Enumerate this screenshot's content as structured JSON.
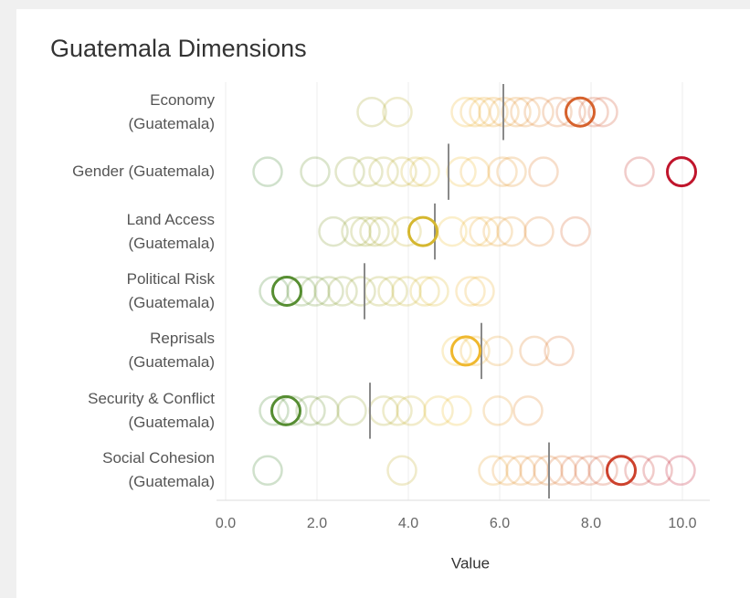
{
  "chart_data": {
    "type": "strip",
    "title": "Guatemala Dimensions",
    "x_label": "Value",
    "categories": [
      "Economy\n(Guatemala)",
      "Gender (Guatemala)",
      "Land Access\n(Guatemala)",
      "Political Risk\n(Guatemala)",
      "Reprisals\n(Guatemala)",
      "Security & Conflict\n(Guatemala)",
      "Social Cohesion\n(Guatemala)"
    ],
    "values": [
      [
        3.2,
        3.76,
        5.26,
        5.46,
        5.66,
        5.86,
        6.1,
        6.36,
        6.56,
        6.86,
        7.26,
        7.56,
        8.06,
        8.26
      ],
      [
        0.92,
        1.96,
        2.72,
        3.12,
        3.46,
        3.86,
        4.16,
        4.36,
        5.16,
        5.46,
        6.06,
        6.26,
        6.96,
        9.06
      ],
      [
        2.36,
        2.86,
        3.06,
        3.26,
        3.46,
        3.96,
        4.96,
        5.46,
        5.66,
        5.96,
        6.26,
        6.86,
        7.66
      ],
      [
        1.06,
        1.66,
        1.96,
        2.26,
        2.56,
        2.96,
        3.36,
        3.66,
        3.96,
        4.36,
        4.56,
        5.36,
        5.56
      ],
      [
        5.06,
        5.46,
        5.96,
        6.76,
        7.3
      ],
      [
        1.06,
        1.46,
        1.86,
        2.16,
        2.76,
        3.46,
        3.76,
        4.06,
        4.66,
        5.06,
        5.96,
        6.62
      ],
      [
        0.92,
        3.86,
        5.86,
        6.16,
        6.46,
        6.76,
        7.06,
        7.36,
        7.66,
        7.96,
        8.26,
        9.06,
        9.46,
        9.96
      ]
    ],
    "highlight": [
      7.76,
      9.98,
      4.32,
      1.34,
      5.26,
      1.32,
      8.66
    ],
    "reference": [
      6.08,
      4.88,
      4.58,
      3.04,
      5.6,
      3.16,
      7.08
    ],
    "xlim": [
      -0.2,
      10.6
    ],
    "xticks": [
      {
        "value": 0,
        "label": "0.0"
      },
      {
        "value": 2,
        "label": "2.0"
      },
      {
        "value": 4,
        "label": "4.0"
      },
      {
        "value": 6,
        "label": "6.0"
      },
      {
        "value": 8,
        "label": "8.0"
      },
      {
        "value": 10,
        "label": "10.0"
      }
    ],
    "grid": true,
    "color_scale": {
      "low": "#1e7b34",
      "mid": "#f2c12e",
      "high": "#c0142c"
    },
    "reference_color": "#8a8a8a"
  }
}
